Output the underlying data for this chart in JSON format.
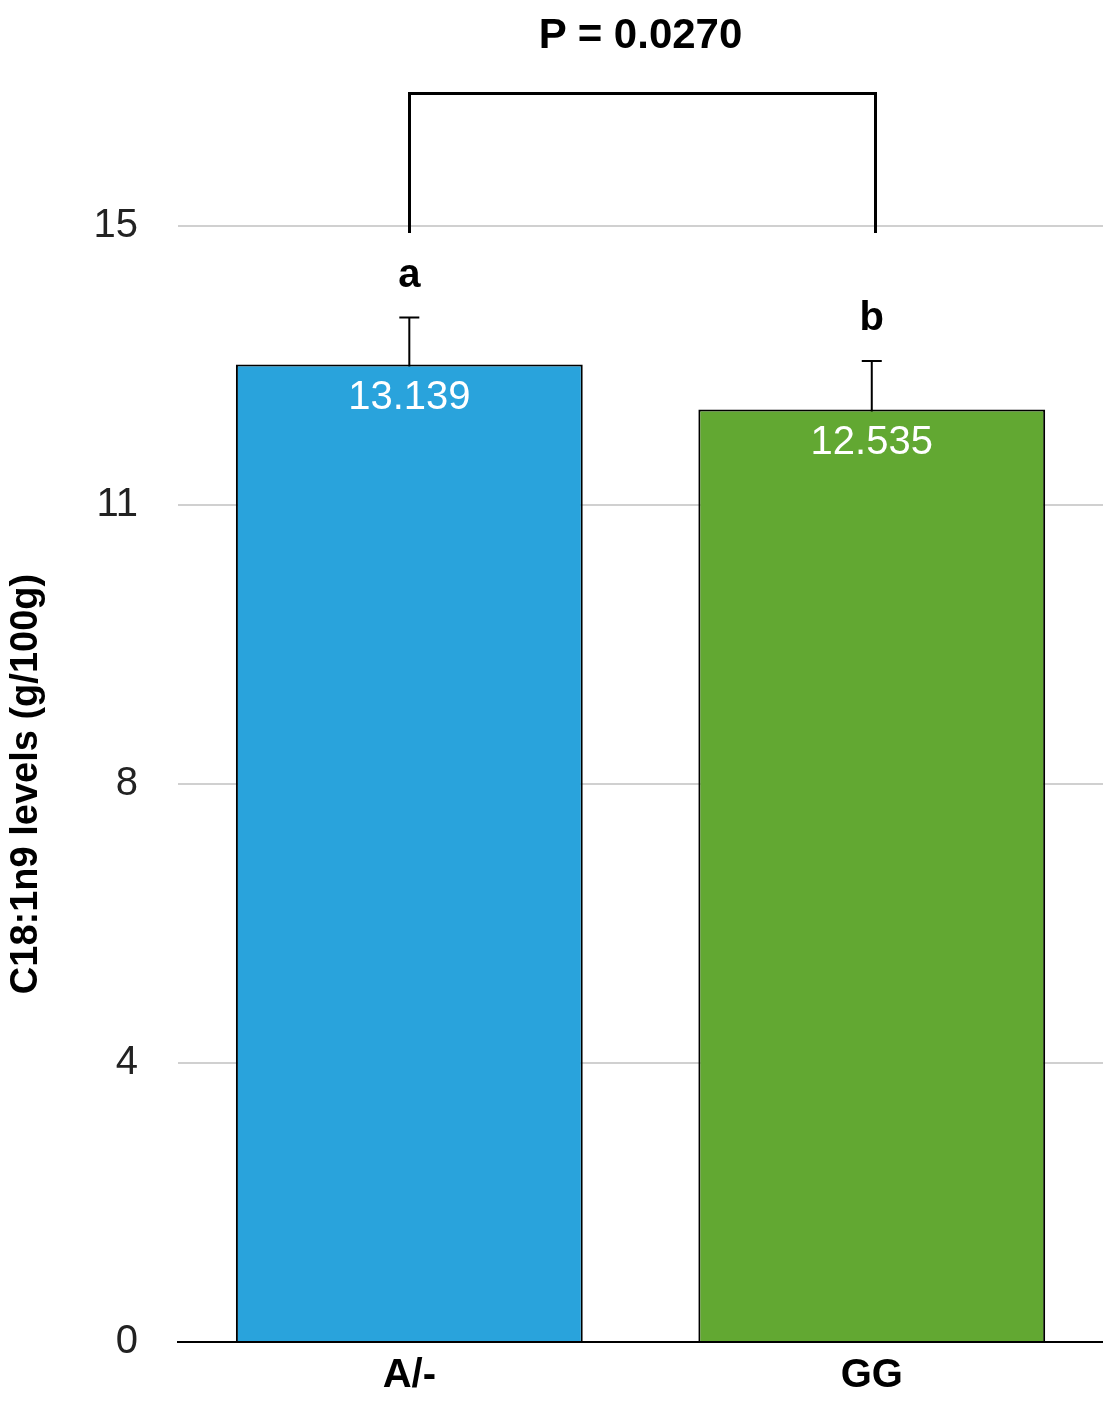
{
  "chart_data": {
    "type": "bar",
    "ylabel": "C18:1n9 levels (g/100g)",
    "categories": [
      "A/-",
      "GG"
    ],
    "series": [
      {
        "colors": [
          "#29a3dc",
          "#62a832"
        ],
        "values": [
          13.139,
          12.535
        ],
        "errors": [
          0.63,
          0.65
        ]
      }
    ],
    "ylim": [
      0,
      15
    ],
    "yticks": [
      0,
      {
        "value": 3.75,
        "label": "4"
      },
      {
        "value": 7.5,
        "label": "8"
      },
      {
        "value": 11.25,
        "label": "11"
      },
      15
    ],
    "grid": "y",
    "data_labels": true,
    "annotations": [
      "P = 0.0270",
      "a",
      "b"
    ]
  }
}
